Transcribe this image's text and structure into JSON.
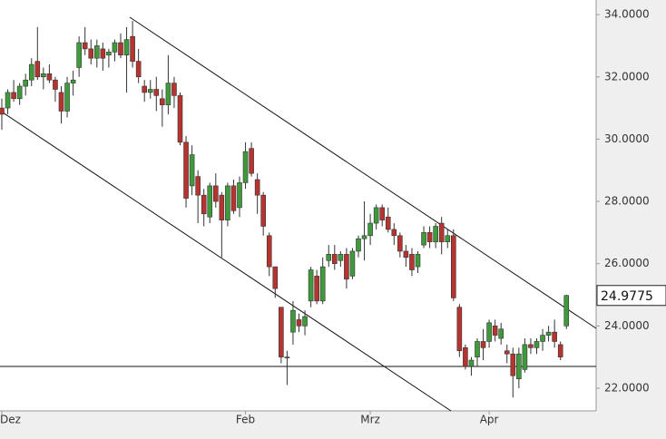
{
  "chart_data": {
    "type": "candlestick",
    "categories": [
      "Dez",
      null,
      null,
      null,
      null,
      null,
      null,
      null,
      null,
      null,
      null,
      null,
      null,
      null,
      null,
      null,
      null,
      null,
      null,
      null,
      null,
      null,
      null,
      null,
      null,
      null,
      null,
      null,
      null,
      null,
      null,
      null,
      null,
      null,
      null,
      null,
      null,
      null,
      null,
      null,
      null,
      "Feb",
      null,
      null,
      null,
      null,
      null,
      null,
      null,
      null,
      null,
      null,
      null,
      null,
      null,
      null,
      null,
      null,
      null,
      null,
      null,
      null,
      "Mrz",
      null,
      null,
      null,
      null,
      null,
      null,
      null,
      null,
      null,
      null,
      null,
      null,
      null,
      null,
      null,
      null,
      null,
      null,
      null,
      "Apr",
      null,
      null,
      null,
      null,
      null,
      null,
      null,
      null,
      null,
      null,
      null,
      null,
      null
    ],
    "open": [
      31.0,
      31.0,
      31.5,
      31.3,
      31.7,
      31.9,
      32.5,
      32.0,
      32.1,
      31.9,
      31.5,
      30.9,
      31.8,
      32.3,
      33.1,
      32.9,
      32.6,
      32.9,
      32.7,
      32.8,
      33.1,
      32.7,
      33.3,
      32.5,
      31.7,
      31.5,
      31.6,
      31.3,
      31.1,
      31.8,
      31.4,
      29.9,
      28.5,
      28.8,
      28.2,
      27.5,
      28.5,
      28.2,
      27.4,
      28.5,
      27.8,
      28.6,
      29.7,
      28.7,
      28.2,
      26.9,
      25.9,
      24.6,
      23.0,
      23.8,
      24.2,
      24.0,
      24.8,
      25.6,
      24.8,
      26.1,
      26.3,
      26.1,
      26.3,
      25.6,
      26.4,
      26.8,
      26.9,
      27.3,
      27.8,
      27.5,
      27.1,
      26.9,
      26.4,
      26.3,
      25.9,
      26.6,
      27.0,
      26.7,
      27.3,
      26.7,
      26.9,
      24.6,
      23.3,
      22.7,
      23.0,
      23.5,
      23.5,
      24.0,
      23.6,
      23.2,
      23.1,
      22.3,
      22.6,
      23.4,
      23.3,
      23.5,
      23.7,
      23.8,
      23.4,
      24.0
    ],
    "high": [
      31.3,
      31.6,
      31.9,
      31.8,
      32.1,
      32.6,
      33.6,
      32.3,
      32.4,
      32.0,
      31.7,
      32.0,
      32.2,
      33.3,
      33.6,
      33.2,
      33.2,
      33.1,
      32.9,
      33.2,
      33.4,
      33.6,
      33.8,
      32.9,
      31.9,
      31.9,
      32.0,
      31.6,
      32.7,
      32.0,
      31.5,
      30.1,
      29.8,
      29.0,
      28.4,
      28.6,
      28.9,
      28.3,
      28.6,
      28.7,
      28.8,
      29.9,
      29.9,
      28.9,
      28.3,
      27.0,
      25.9,
      24.6,
      23.2,
      24.8,
      24.4,
      24.5,
      25.9,
      25.8,
      26.2,
      26.6,
      26.6,
      26.4,
      26.5,
      26.5,
      26.9,
      28.0,
      27.6,
      27.9,
      27.9,
      27.8,
      27.3,
      27.0,
      26.6,
      26.5,
      26.4,
      27.2,
      27.2,
      27.3,
      27.5,
      27.1,
      27.1,
      24.7,
      23.4,
      23.0,
      23.6,
      23.9,
      24.2,
      24.2,
      24.1,
      23.4,
      23.3,
      23.3,
      23.6,
      23.6,
      23.6,
      23.9,
      24.0,
      24.2,
      23.5,
      25.0
    ],
    "low": [
      30.3,
      30.8,
      31.2,
      31.1,
      31.4,
      31.7,
      31.9,
      31.6,
      31.8,
      31.2,
      30.5,
      30.7,
      31.4,
      32.0,
      32.7,
      32.4,
      32.3,
      32.2,
      32.3,
      32.5,
      32.6,
      31.5,
      32.3,
      31.8,
      31.2,
      31.3,
      30.9,
      30.4,
      30.8,
      31.0,
      29.8,
      27.8,
      28.2,
      27.3,
      27.2,
      27.3,
      27.8,
      26.2,
      27.2,
      27.6,
      27.5,
      28.4,
      28.8,
      27.6,
      26.9,
      25.6,
      24.9,
      22.8,
      22.1,
      23.4,
      23.8,
      23.7,
      24.6,
      24.7,
      24.7,
      25.9,
      25.8,
      25.9,
      25.2,
      25.5,
      26.2,
      26.1,
      26.6,
      27.1,
      27.2,
      27.0,
      26.6,
      26.2,
      25.9,
      25.6,
      25.7,
      26.5,
      26.5,
      26.5,
      26.3,
      26.5,
      24.8,
      23.0,
      22.6,
      22.4,
      22.7,
      22.9,
      23.3,
      23.5,
      23.4,
      22.8,
      21.7,
      22.0,
      22.5,
      23.1,
      23.1,
      23.2,
      23.5,
      23.3,
      22.9,
      23.9
    ],
    "close": [
      30.8,
      31.5,
      31.3,
      31.7,
      31.9,
      32.4,
      32.0,
      32.1,
      31.9,
      31.6,
      30.9,
      31.8,
      31.9,
      33.1,
      32.9,
      32.6,
      33.0,
      32.6,
      32.8,
      33.1,
      32.7,
      33.2,
      32.5,
      32.0,
      31.5,
      31.6,
      31.4,
      31.1,
      31.8,
      31.4,
      29.9,
      28.1,
      29.5,
      28.2,
      27.6,
      28.5,
      28.0,
      27.4,
      28.5,
      27.7,
      28.6,
      29.6,
      28.9,
      28.2,
      27.2,
      25.9,
      25.2,
      23.0,
      23.0,
      24.5,
      24.0,
      24.3,
      25.8,
      24.8,
      25.9,
      26.3,
      26.0,
      26.3,
      25.5,
      26.4,
      26.8,
      26.9,
      27.3,
      27.8,
      27.4,
      27.1,
      26.9,
      26.4,
      26.2,
      25.8,
      26.3,
      27.0,
      26.7,
      27.2,
      26.7,
      26.9,
      24.9,
      23.2,
      22.7,
      22.9,
      23.5,
      23.3,
      24.1,
      23.7,
      23.9,
      23.1,
      22.4,
      23.1,
      23.4,
      23.3,
      23.5,
      23.7,
      23.8,
      23.5,
      23.0,
      24.9775
    ],
    "up_color": "#3f9a3c",
    "down_color": "#b5342f",
    "ylim": [
      21.27,
      34.47
    ],
    "yticks": [
      {
        "value": 22,
        "label": "22.0000"
      },
      {
        "value": 24,
        "label": "24.0000"
      },
      {
        "value": 26,
        "label": "26.0000"
      },
      {
        "value": 28,
        "label": "28.0000"
      },
      {
        "value": 30,
        "label": "30.0000"
      },
      {
        "value": 32,
        "label": "32.0000"
      },
      {
        "value": 34,
        "label": "34.0000"
      }
    ],
    "last_price": 24.9775
  }
}
